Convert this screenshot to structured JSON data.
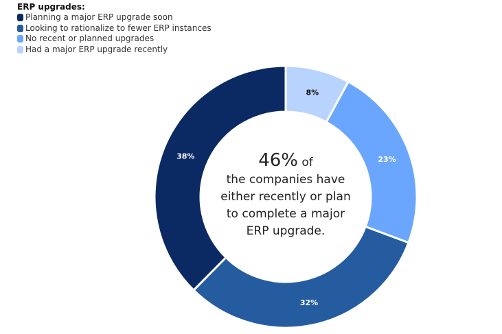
{
  "chart_data": {
    "type": "pie",
    "variant": "donut",
    "legend_title": "ERP upgrades:",
    "legend_placement": "top-left",
    "slices": [
      {
        "label": "Had a major ERP upgrade recently",
        "value": 8,
        "value_label": "8%",
        "color": "#b8d3fe",
        "label_color": "#111111"
      },
      {
        "label": "No recent or planned upgrades",
        "value": 23,
        "value_label": "23%",
        "color": "#6aa6fd",
        "label_color": "#ffffff"
      },
      {
        "label": "Looking to rationalize to fewer ERP instances",
        "value": 32,
        "value_label": "32%",
        "color": "#255ca0",
        "label_color": "#ffffff"
      },
      {
        "label": "Planning a major ERP upgrade soon",
        "value": 38,
        "value_label": "38%",
        "color": "#0b2a63",
        "label_color": "#ffffff"
      }
    ],
    "legend_order": [
      3,
      2,
      1,
      0
    ],
    "center": {
      "big": "46%",
      "of": " of",
      "lines": [
        "the companies have",
        "either recently or plan",
        "to complete a major",
        "ERP upgrade."
      ]
    }
  }
}
